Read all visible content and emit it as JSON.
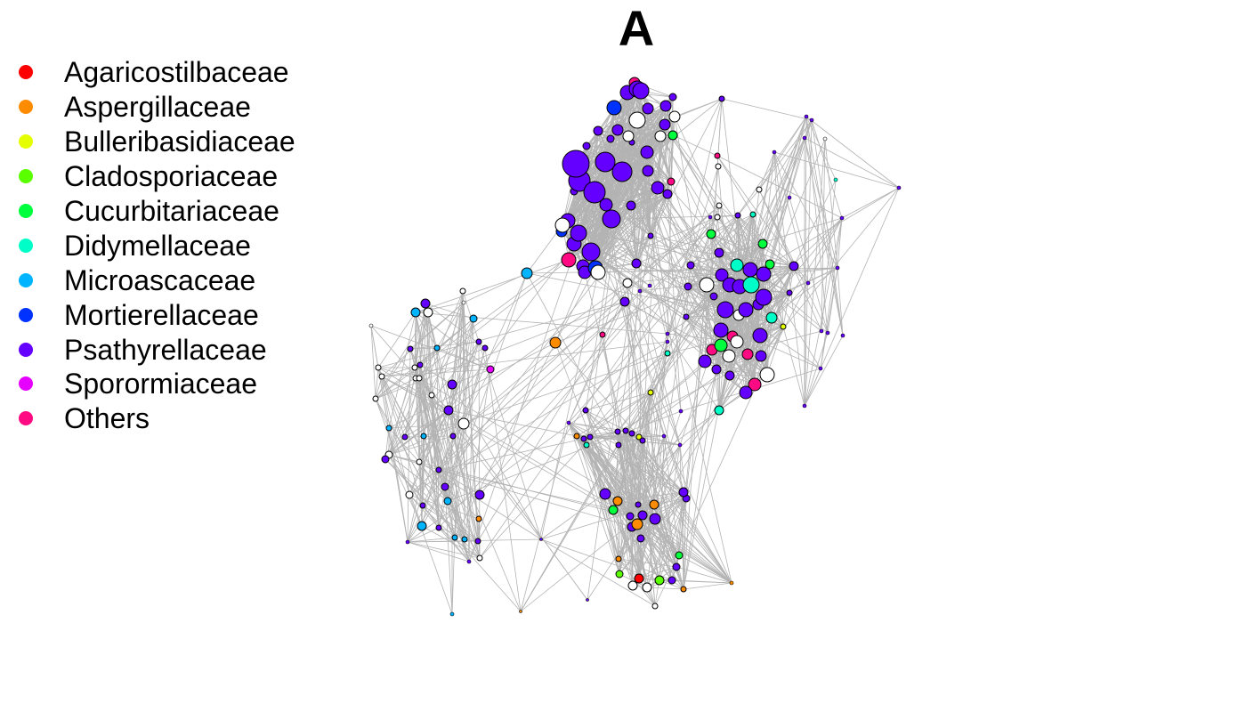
{
  "title": "A",
  "legend": {
    "items": [
      {
        "label": "Agaricostilbaceae",
        "color": "#ff0000"
      },
      {
        "label": "Aspergillaceae",
        "color": "#ff8c00"
      },
      {
        "label": "Bulleribasidiaceae",
        "color": "#e6ff00"
      },
      {
        "label": "Cladosporiaceae",
        "color": "#5aff00"
      },
      {
        "label": "Cucurbitariaceae",
        "color": "#00ff3c"
      },
      {
        "label": "Didymellaceae",
        "color": "#00ffc8"
      },
      {
        "label": "Microascaceae",
        "color": "#00b4ff"
      },
      {
        "label": "Mortierellaceae",
        "color": "#0032ff"
      },
      {
        "label": "Psathyrellaceae",
        "color": "#6400ff"
      },
      {
        "label": "Sporormiaceae",
        "color": "#e600ff"
      },
      {
        "label": "Others",
        "color": "#ff0a82"
      }
    ]
  },
  "network": {
    "edge_color": "#b3b3b3",
    "unassigned_node_color": "#ffffff",
    "node_outline_color": "#000000"
  }
}
